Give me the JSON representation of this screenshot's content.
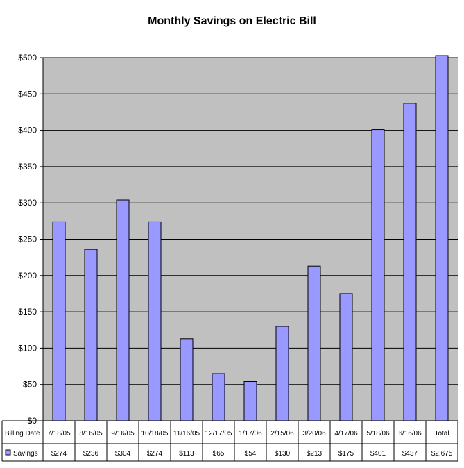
{
  "chart_data": {
    "type": "bar",
    "title": "Monthly Savings on Electric Bill",
    "xlabel": "",
    "ylabel": "",
    "ylim": [
      0,
      500
    ],
    "yticks": [
      "$0",
      "$50",
      "$100",
      "$150",
      "$200",
      "$250",
      "$300",
      "$350",
      "$400",
      "$450",
      "$500"
    ],
    "grid": true,
    "categories": [
      "7/18/05",
      "8/16/05",
      "9/16/05",
      "10/18/05",
      "11/16/05",
      "12/17/05",
      "1/17/06",
      "2/15/06",
      "3/20/06",
      "4/17/06",
      "5/18/06",
      "6/16/06",
      "Total"
    ],
    "series": [
      {
        "name": "Savings",
        "values": [
          274,
          236,
          304,
          274,
          113,
          65,
          54,
          130,
          213,
          175,
          401,
          437,
          2675
        ],
        "value_labels": [
          "$274",
          "$236",
          "$304",
          "$274",
          "$113",
          "$65",
          "$54",
          "$130",
          "$213",
          "$175",
          "$401",
          "$437",
          "$2,675"
        ]
      }
    ],
    "data_table": {
      "header_label": "Billing Date"
    },
    "colors": {
      "bar_fill": "#9999ff",
      "plot_background": "#c0c0c0",
      "gridline": "#000000"
    }
  }
}
